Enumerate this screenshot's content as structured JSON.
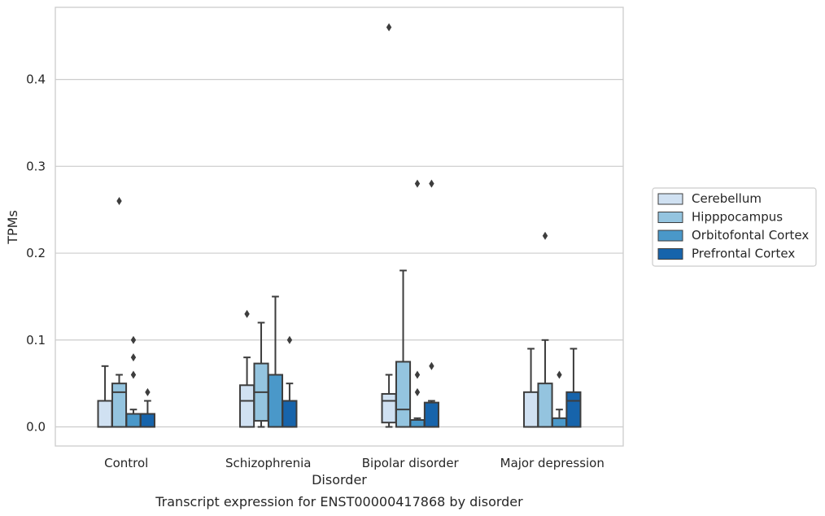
{
  "caption": "Transcript expression for ENST00000417868 by disorder",
  "chart_data": {
    "type": "box",
    "title": "",
    "xlabel": "Disorder",
    "ylabel": "TPMs",
    "ylim": [
      -0.022,
      0.483
    ],
    "yticks": [
      0.0,
      0.1,
      0.2,
      0.3,
      0.4
    ],
    "ytick_labels": [
      "0.0",
      "0.1",
      "0.2",
      "0.3",
      "0.4"
    ],
    "grid": "horizontal",
    "legend_position": "right",
    "categories": [
      "Control",
      "Schizophrenia",
      "Bipolar disorder",
      "Major depression"
    ],
    "series": [
      {
        "name": "Cerebellum",
        "color": "#d0e1f2",
        "boxes": [
          {
            "whislo": 0.0,
            "q1": 0.0,
            "med": 0.0,
            "q3": 0.03,
            "whishi": 0.07,
            "fliers": []
          },
          {
            "whislo": 0.0,
            "q1": 0.0,
            "med": 0.03,
            "q3": 0.048,
            "whishi": 0.08,
            "fliers": [
              0.13
            ]
          },
          {
            "whislo": 0.0,
            "q1": 0.005,
            "med": 0.03,
            "q3": 0.038,
            "whishi": 0.06,
            "fliers": [
              0.46
            ]
          },
          {
            "whislo": 0.0,
            "q1": 0.0,
            "med": 0.0,
            "q3": 0.04,
            "whishi": 0.09,
            "fliers": []
          }
        ]
      },
      {
        "name": "Hipppocampus",
        "color": "#94c4df",
        "boxes": [
          {
            "whislo": 0.0,
            "q1": 0.0,
            "med": 0.04,
            "q3": 0.05,
            "whishi": 0.06,
            "fliers": [
              0.26
            ]
          },
          {
            "whislo": 0.0,
            "q1": 0.007,
            "med": 0.04,
            "q3": 0.073,
            "whishi": 0.12,
            "fliers": []
          },
          {
            "whislo": 0.0,
            "q1": 0.0,
            "med": 0.02,
            "q3": 0.075,
            "whishi": 0.18,
            "fliers": []
          },
          {
            "whislo": 0.0,
            "q1": 0.0,
            "med": 0.0,
            "q3": 0.05,
            "whishi": 0.1,
            "fliers": [
              0.22
            ]
          }
        ]
      },
      {
        "name": "Orbitofontal Cortex",
        "color": "#4a98c9",
        "boxes": [
          {
            "whislo": 0.0,
            "q1": 0.0,
            "med": 0.0,
            "q3": 0.015,
            "whishi": 0.02,
            "fliers": [
              0.06,
              0.08,
              0.1
            ]
          },
          {
            "whislo": 0.0,
            "q1": 0.0,
            "med": 0.0,
            "q3": 0.06,
            "whishi": 0.15,
            "fliers": []
          },
          {
            "whislo": 0.0,
            "q1": 0.0,
            "med": 0.0,
            "q3": 0.008,
            "whishi": 0.01,
            "fliers": [
              0.04,
              0.06,
              0.28
            ]
          },
          {
            "whislo": 0.0,
            "q1": 0.0,
            "med": 0.0,
            "q3": 0.01,
            "whishi": 0.02,
            "fliers": [
              0.06
            ]
          }
        ]
      },
      {
        "name": "Prefrontal Cortex",
        "color": "#1764ab",
        "boxes": [
          {
            "whislo": 0.0,
            "q1": 0.0,
            "med": 0.0,
            "q3": 0.015,
            "whishi": 0.03,
            "fliers": [
              0.04
            ]
          },
          {
            "whislo": 0.0,
            "q1": 0.0,
            "med": 0.0,
            "q3": 0.03,
            "whishi": 0.05,
            "fliers": [
              0.1
            ]
          },
          {
            "whislo": 0.0,
            "q1": 0.0,
            "med": 0.0,
            "q3": 0.028,
            "whishi": 0.03,
            "fliers": [
              0.07,
              0.28
            ]
          },
          {
            "whislo": 0.0,
            "q1": 0.0,
            "med": 0.03,
            "q3": 0.04,
            "whishi": 0.09,
            "fliers": []
          }
        ]
      }
    ]
  }
}
